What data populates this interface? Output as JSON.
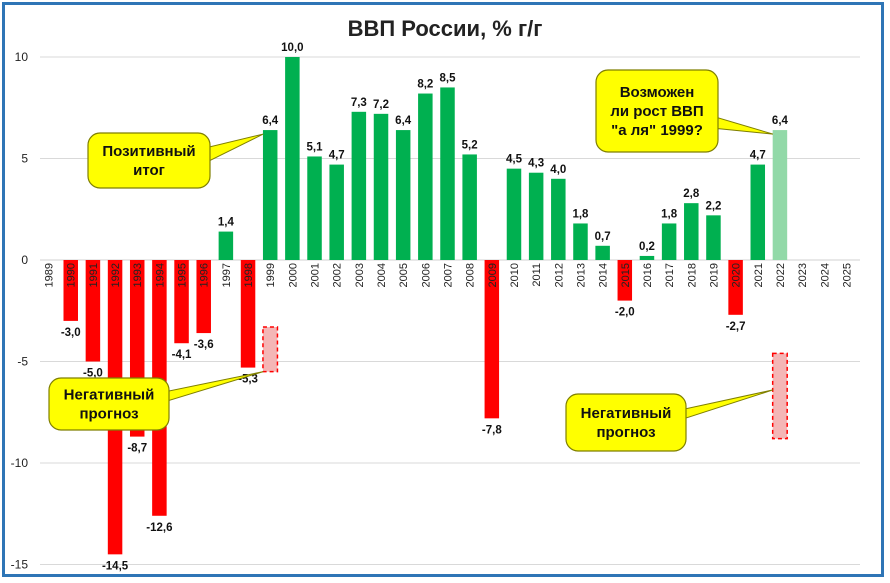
{
  "chart_data": {
    "type": "bar",
    "title": "ВВП России, % г/г",
    "ylim": [
      -15,
      10
    ],
    "yticks": [
      10,
      5,
      0,
      -5,
      -10,
      -15
    ],
    "grid": true,
    "categories": [
      "1989",
      "1990",
      "1991",
      "1992",
      "1993",
      "1994",
      "1995",
      "1996",
      "1997",
      "1998",
      "1999",
      "2000",
      "2001",
      "2002",
      "2003",
      "2004",
      "2005",
      "2006",
      "2007",
      "2008",
      "2009",
      "2010",
      "2011",
      "2012",
      "2013",
      "2014",
      "2015",
      "2016",
      "2017",
      "2018",
      "2019",
      "2020",
      "2021",
      "2022",
      "2023",
      "2024",
      "2025"
    ],
    "values": [
      null,
      -3.0,
      -5.0,
      -14.5,
      -8.7,
      -12.6,
      -4.1,
      -3.6,
      1.4,
      -5.3,
      6.4,
      10.0,
      5.1,
      4.7,
      7.3,
      7.2,
      6.4,
      8.2,
      8.5,
      5.2,
      -7.8,
      4.5,
      4.3,
      4.0,
      1.8,
      0.7,
      -2.0,
      0.2,
      1.8,
      2.8,
      2.2,
      -2.7,
      4.7,
      6.4,
      null,
      null,
      null
    ],
    "labels": [
      "",
      "-3,0",
      "-5,0",
      "-14,5",
      "-8,7",
      "-12,6",
      "-4,1",
      "-3,6",
      "1,4",
      "-5,3",
      "6,4",
      "10,0",
      "5,1",
      "4,7",
      "7,3",
      "7,2",
      "6,4",
      "8,2",
      "8,5",
      "5,2",
      "-7,8",
      "4,5",
      "4,3",
      "4,0",
      "1,8",
      "0,7",
      "-2,0",
      "0,2",
      "1,8",
      "2,8",
      "2,2",
      "-2,7",
      "4,7",
      "6,4",
      "",
      "",
      ""
    ],
    "highlight_index": 33,
    "forecast_boxes": [
      {
        "category": "1999",
        "from": -3.3,
        "to": -5.5
      },
      {
        "category": "2022",
        "from": -4.6,
        "to": -8.8
      }
    ],
    "colors": {
      "positive": "#00b050",
      "negative": "#ff0000",
      "highlight": "#92d9a8",
      "forecast_fill": "#f4b6b6",
      "forecast_stroke": "#ff0000",
      "callout_fill": "#ffff00",
      "frame": "#2e75b6",
      "grid": "#d9d9d9"
    },
    "callouts": [
      {
        "id": "positive",
        "lines": [
          "Позитивный",
          "итог"
        ]
      },
      {
        "id": "question",
        "lines": [
          "Возможен",
          "ли рост ВВП",
          "\"а ля\" 1999?"
        ]
      },
      {
        "id": "negative-left",
        "lines": [
          "Негативный",
          "прогноз"
        ]
      },
      {
        "id": "negative-right",
        "lines": [
          "Негативный",
          "прогноз"
        ]
      }
    ]
  }
}
